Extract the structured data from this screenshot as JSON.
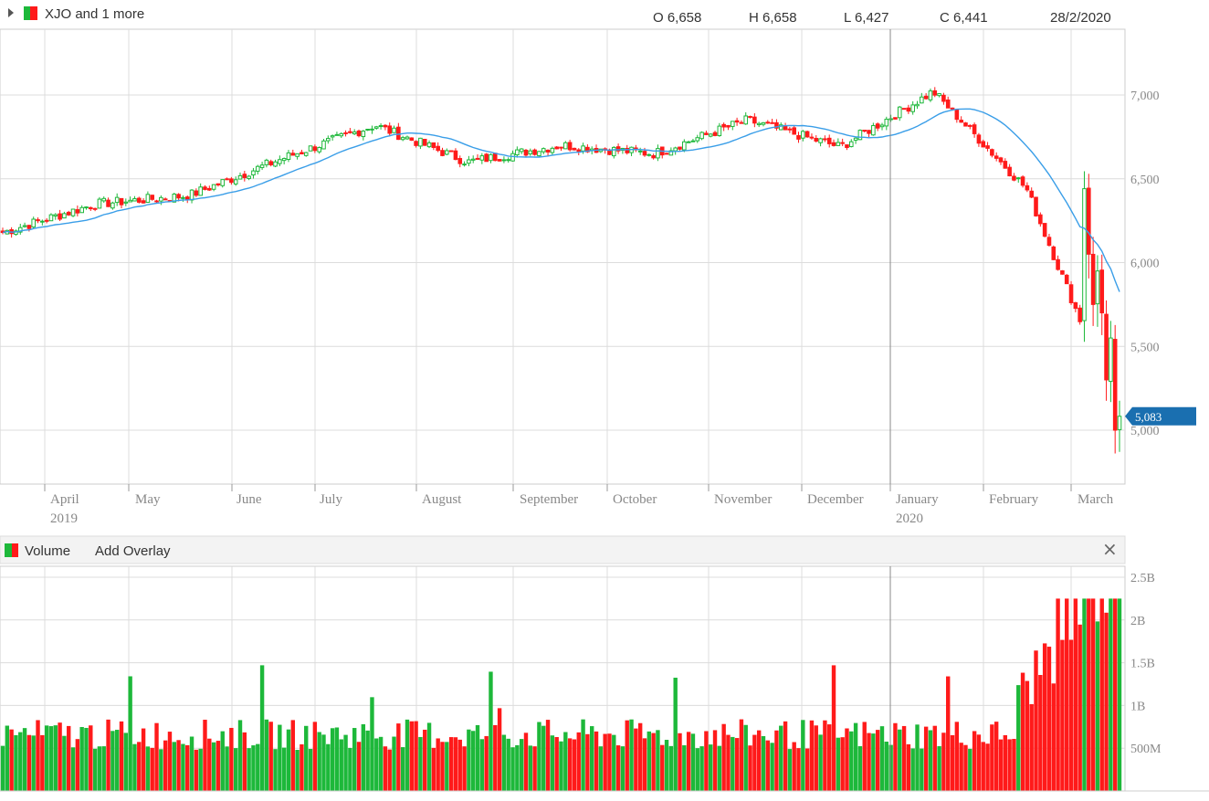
{
  "header": {
    "symbol_label": "XJO and 1 more",
    "open_label": "O 6,658",
    "high_label": "H 6,658",
    "low_label": "L 6,427",
    "close_label": "C 6,441",
    "date_label": "28/2/2020"
  },
  "volume_panel": {
    "label": "Volume",
    "add_overlay": "Add Overlay",
    "close_glyph": "×"
  },
  "colors": {
    "up": "#1db83a",
    "down": "#ff1a1a",
    "ma": "#3a9ee8",
    "grid": "#dcdcdc",
    "tag": "#1a6fb0",
    "axis_text": "#888888"
  },
  "chart_data": [
    {
      "type": "candlestick",
      "title": "",
      "series": [
        {
          "name": "XJO"
        },
        {
          "name": "",
          "kind": "moving-average"
        }
      ],
      "ylim": [
        4800,
        7300
      ],
      "yticks": [
        5000,
        5500,
        6000,
        6500,
        7000
      ],
      "ytick_labels": [
        "5,000",
        "5,500",
        "6,000",
        "6,500",
        "7,000"
      ],
      "month_labels": [
        {
          "label": "April",
          "year": "2019"
        },
        {
          "label": "May",
          "year": ""
        },
        {
          "label": "June",
          "year": ""
        },
        {
          "label": "July",
          "year": ""
        },
        {
          "label": "August",
          "year": ""
        },
        {
          "label": "September",
          "year": ""
        },
        {
          "label": "October",
          "year": ""
        },
        {
          "label": "November",
          "year": ""
        },
        {
          "label": "December",
          "year": ""
        },
        {
          "label": "January",
          "year": "2020"
        },
        {
          "label": "February",
          "year": ""
        },
        {
          "label": "March",
          "year": ""
        }
      ],
      "close_path_monthly_approx": [
        {
          "month": "2019-03",
          "close": 6180
        },
        {
          "month": "2019-04",
          "close": 6350
        },
        {
          "month": "2019-05",
          "close": 6400
        },
        {
          "month": "2019-06",
          "close": 6620
        },
        {
          "month": "2019-07",
          "close": 6820
        },
        {
          "month": "2019-08",
          "close": 6600
        },
        {
          "month": "2019-09",
          "close": 6700
        },
        {
          "month": "2019-10",
          "close": 6650
        },
        {
          "month": "2019-11",
          "close": 6850
        },
        {
          "month": "2019-12",
          "close": 6690
        },
        {
          "month": "2020-01",
          "close": 7020
        },
        {
          "month": "2020-02",
          "close": 6441
        },
        {
          "month": "2020-03",
          "close": 5083
        }
      ],
      "crosshair_date": "28/2/2020",
      "last_value_label": "5,083",
      "last_value": 5083
    },
    {
      "type": "bar",
      "title": "Volume",
      "ylim": [
        0,
        2500000000
      ],
      "yticks": [
        500000000,
        1000000000,
        1500000000,
        2000000000,
        2500000000
      ],
      "ytick_labels": [
        "500M",
        "1B",
        "1.5B",
        "2B",
        "2.5B"
      ],
      "typical_daily_volume": 600000000,
      "max_volume_approx": 2250000000
    }
  ]
}
